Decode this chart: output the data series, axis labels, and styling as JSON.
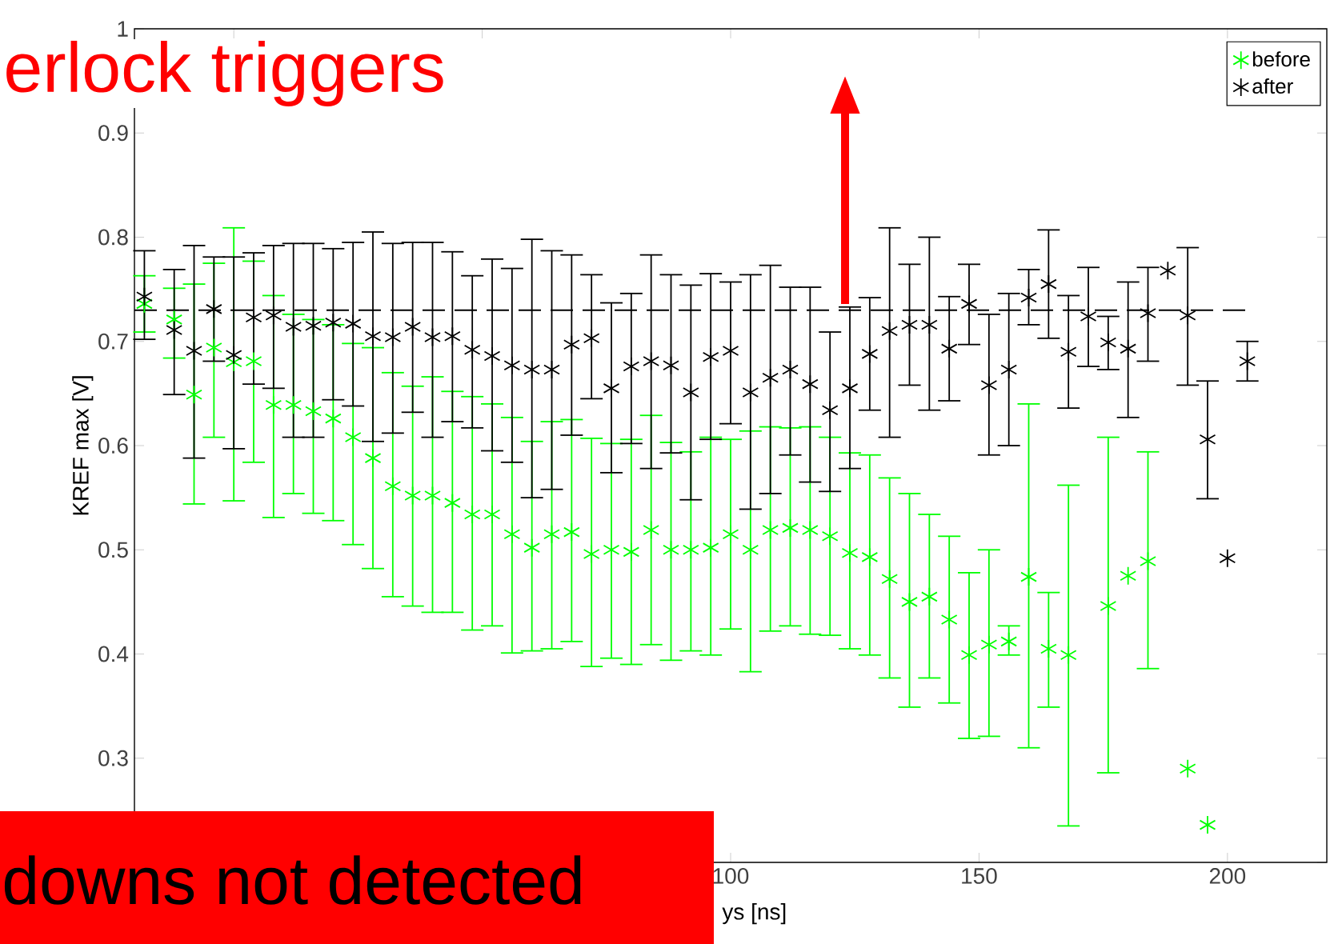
{
  "chart_data": {
    "type": "scatter",
    "xlabel": "ys [ns]",
    "ylabel": "KREF max [V]",
    "xlim": [
      -20,
      220
    ],
    "ylim": [
      0.2,
      1
    ],
    "xticks": [
      {
        "value": 0,
        "label": null
      },
      {
        "value": 50,
        "label": null
      },
      100,
      150,
      200
    ],
    "yticks": [
      {
        "value": 0.2,
        "label": null
      },
      0.3,
      0.4,
      0.5,
      0.6,
      0.7,
      0.8,
      0.9,
      1
    ],
    "marker": "cross",
    "legend": "top right",
    "grid": false,
    "series": [
      {
        "name": "before",
        "color": "#00ff00",
        "x": [
          -18,
          -12,
          -8,
          -4,
          0,
          4,
          8,
          12,
          16,
          20,
          24,
          28,
          32,
          36,
          40,
          44,
          48,
          52,
          56,
          60,
          64,
          68,
          72,
          76,
          80,
          84,
          88,
          92,
          96,
          100,
          104,
          108,
          112,
          116,
          120,
          124,
          128,
          132,
          136,
          140,
          144,
          148,
          152,
          156,
          160,
          164,
          168,
          176,
          180,
          184,
          192,
          196
        ],
        "values": [
          0.736,
          0.721,
          0.649,
          0.694,
          0.68,
          0.681,
          0.639,
          0.639,
          0.633,
          0.626,
          0.608,
          0.588,
          0.561,
          0.552,
          0.552,
          0.545,
          0.534,
          0.534,
          0.515,
          0.502,
          0.515,
          0.517,
          0.496,
          0.5,
          0.498,
          0.519,
          0.5,
          0.5,
          0.502,
          0.515,
          0.5,
          0.519,
          0.521,
          0.519,
          0.513,
          0.497,
          0.493,
          0.472,
          0.45,
          0.455,
          0.433,
          0.399,
          0.409,
          0.412,
          0.474,
          0.405,
          0.399,
          0.446,
          0.475,
          0.489,
          0.29,
          0.236
        ],
        "errors": [
          [
            0.709,
            0.763
          ],
          [
            0.684,
            0.751
          ],
          [
            0.544,
            0.755
          ],
          [
            0.608,
            0.775
          ],
          [
            0.547,
            0.809
          ],
          [
            0.584,
            0.777
          ],
          [
            0.531,
            0.744
          ],
          [
            0.554,
            0.726
          ],
          [
            0.535,
            0.721
          ],
          [
            0.528,
            0.716
          ],
          [
            0.505,
            0.698
          ],
          [
            0.482,
            0.694
          ],
          [
            0.455,
            0.67
          ],
          [
            0.446,
            0.657
          ],
          [
            0.44,
            0.666
          ],
          [
            0.44,
            0.652
          ],
          [
            0.423,
            0.647
          ],
          [
            0.427,
            0.64
          ],
          [
            0.401,
            0.627
          ],
          [
            0.403,
            0.604
          ],
          [
            0.405,
            0.623
          ],
          [
            0.412,
            0.625
          ],
          [
            0.388,
            0.607
          ],
          [
            0.396,
            0.602
          ],
          [
            0.39,
            0.606
          ],
          [
            0.409,
            0.629
          ],
          [
            0.394,
            0.603
          ],
          [
            0.403,
            0.594
          ],
          [
            0.399,
            0.608
          ],
          [
            0.424,
            0.606
          ],
          [
            0.383,
            0.614
          ],
          [
            0.422,
            0.618
          ],
          [
            0.427,
            0.617
          ],
          [
            0.419,
            0.618
          ],
          [
            0.418,
            0.608
          ],
          [
            0.405,
            0.593
          ],
          [
            0.399,
            0.591
          ],
          [
            0.377,
            0.569
          ],
          [
            0.349,
            0.554
          ],
          [
            0.377,
            0.534
          ],
          [
            0.353,
            0.513
          ],
          [
            0.319,
            0.478
          ],
          [
            0.321,
            0.5
          ],
          [
            0.399,
            0.427
          ],
          [
            0.31,
            0.64
          ],
          [
            0.349,
            0.459
          ],
          [
            0.235,
            0.562
          ],
          [
            0.286,
            0.608
          ],
          null,
          [
            0.386,
            0.594
          ],
          null,
          null
        ]
      },
      {
        "name": "after",
        "color": "#000000",
        "x": [
          -18,
          -12,
          -8,
          -4,
          0,
          4,
          8,
          12,
          16,
          20,
          24,
          28,
          32,
          36,
          40,
          44,
          48,
          52,
          56,
          60,
          64,
          68,
          72,
          76,
          80,
          84,
          88,
          92,
          96,
          100,
          104,
          108,
          112,
          116,
          120,
          124,
          128,
          132,
          136,
          140,
          144,
          148,
          152,
          156,
          160,
          164,
          168,
          172,
          176,
          180,
          184,
          188,
          192,
          196,
          200,
          204
        ],
        "values": [
          0.743,
          0.711,
          0.691,
          0.731,
          0.687,
          0.723,
          0.725,
          0.714,
          0.715,
          0.718,
          0.717,
          0.705,
          0.704,
          0.714,
          0.704,
          0.705,
          0.692,
          0.686,
          0.677,
          0.673,
          0.673,
          0.697,
          0.703,
          0.655,
          0.676,
          0.681,
          0.677,
          0.651,
          0.685,
          0.691,
          0.651,
          0.665,
          0.673,
          0.659,
          0.634,
          0.655,
          0.688,
          0.71,
          0.716,
          0.716,
          0.693,
          0.736,
          0.658,
          0.673,
          0.742,
          0.755,
          0.69,
          0.724,
          0.699,
          0.693,
          0.727,
          0.768,
          0.725,
          0.606,
          0.492,
          0.681
        ],
        "errors": [
          [
            0.702,
            0.787
          ],
          [
            0.649,
            0.769
          ],
          [
            0.588,
            0.792
          ],
          [
            0.681,
            0.781
          ],
          [
            0.597,
            0.781
          ],
          [
            0.659,
            0.785
          ],
          [
            0.655,
            0.792
          ],
          [
            0.608,
            0.794
          ],
          [
            0.608,
            0.794
          ],
          [
            0.644,
            0.789
          ],
          [
            0.638,
            0.795
          ],
          [
            0.604,
            0.805
          ],
          [
            0.612,
            0.794
          ],
          [
            0.632,
            0.795
          ],
          [
            0.608,
            0.795
          ],
          [
            0.623,
            0.786
          ],
          [
            0.617,
            0.763
          ],
          [
            0.595,
            0.779
          ],
          [
            0.584,
            0.77
          ],
          [
            0.55,
            0.798
          ],
          [
            0.558,
            0.787
          ],
          [
            0.61,
            0.783
          ],
          [
            0.645,
            0.764
          ],
          [
            0.574,
            0.737
          ],
          [
            0.602,
            0.746
          ],
          [
            0.578,
            0.783
          ],
          [
            0.593,
            0.764
          ],
          [
            0.548,
            0.754
          ],
          [
            0.606,
            0.765
          ],
          [
            0.621,
            0.757
          ],
          [
            0.539,
            0.764
          ],
          [
            0.554,
            0.773
          ],
          [
            0.591,
            0.752
          ],
          [
            0.565,
            0.752
          ],
          [
            0.556,
            0.709
          ],
          [
            0.578,
            0.733
          ],
          [
            0.634,
            0.742
          ],
          [
            0.608,
            0.809
          ],
          [
            0.658,
            0.774
          ],
          [
            0.634,
            0.8
          ],
          [
            0.643,
            0.743
          ],
          [
            0.697,
            0.774
          ],
          [
            0.591,
            0.726
          ],
          [
            0.6,
            0.746
          ],
          [
            0.716,
            0.769
          ],
          [
            0.703,
            0.807
          ],
          [
            0.636,
            0.744
          ],
          [
            0.676,
            0.771
          ],
          [
            0.673,
            0.724
          ],
          [
            0.627,
            0.757
          ],
          [
            0.681,
            0.771
          ],
          null,
          [
            0.658,
            0.79
          ],
          [
            0.549,
            0.662
          ],
          null,
          [
            0.662,
            0.7
          ]
        ]
      },
      {
        "type": "line",
        "color": "#000000",
        "marker": "none",
        "line_style": "dashed",
        "x": [
          -20,
          204
        ],
        "values": [
          0.73,
          0.73
        ]
      }
    ],
    "annotations": [
      "erlock triggers",
      "downs not detected"
    ]
  }
}
